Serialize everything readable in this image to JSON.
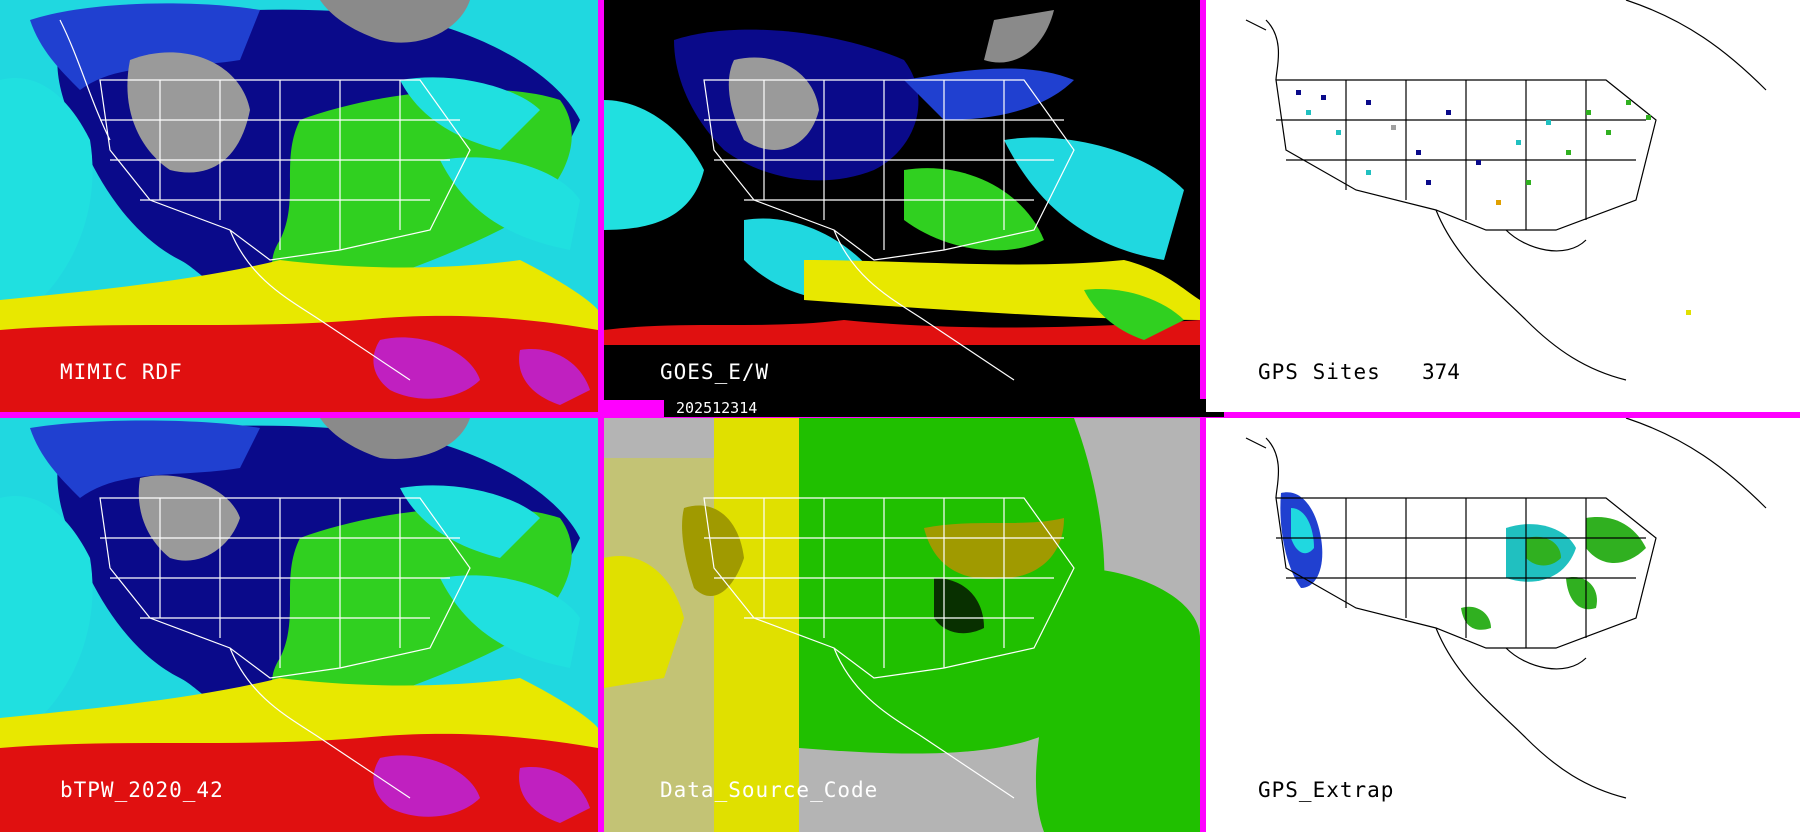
{
  "timestamp": "202512314",
  "panels": {
    "mimic_rdf": {
      "label": "MIMIC RDF"
    },
    "goes": {
      "label": "GOES_E/W"
    },
    "gps_sites": {
      "label": "GPS Sites",
      "count": "374"
    },
    "btpw": {
      "label": "bTPW_2020_42"
    },
    "data_source": {
      "label": "Data_Source_Code"
    },
    "gps_extrap": {
      "label": "GPS_Extrap"
    }
  },
  "colors": {
    "divider": "#ff00ff",
    "tpw_gray": "#9a9a9a",
    "tpw_darkblue": "#0a0a8a",
    "tpw_blue": "#2040d0",
    "tpw_cyan": "#20e0e0",
    "tpw_green": "#30d020",
    "tpw_yellow": "#e8e800",
    "tpw_red": "#e01010",
    "tpw_magenta": "#c020c0",
    "source_gray": "#b4b4b4",
    "source_yellow": "#e0e000",
    "source_olive": "#a09a00",
    "source_green": "#20c000"
  }
}
